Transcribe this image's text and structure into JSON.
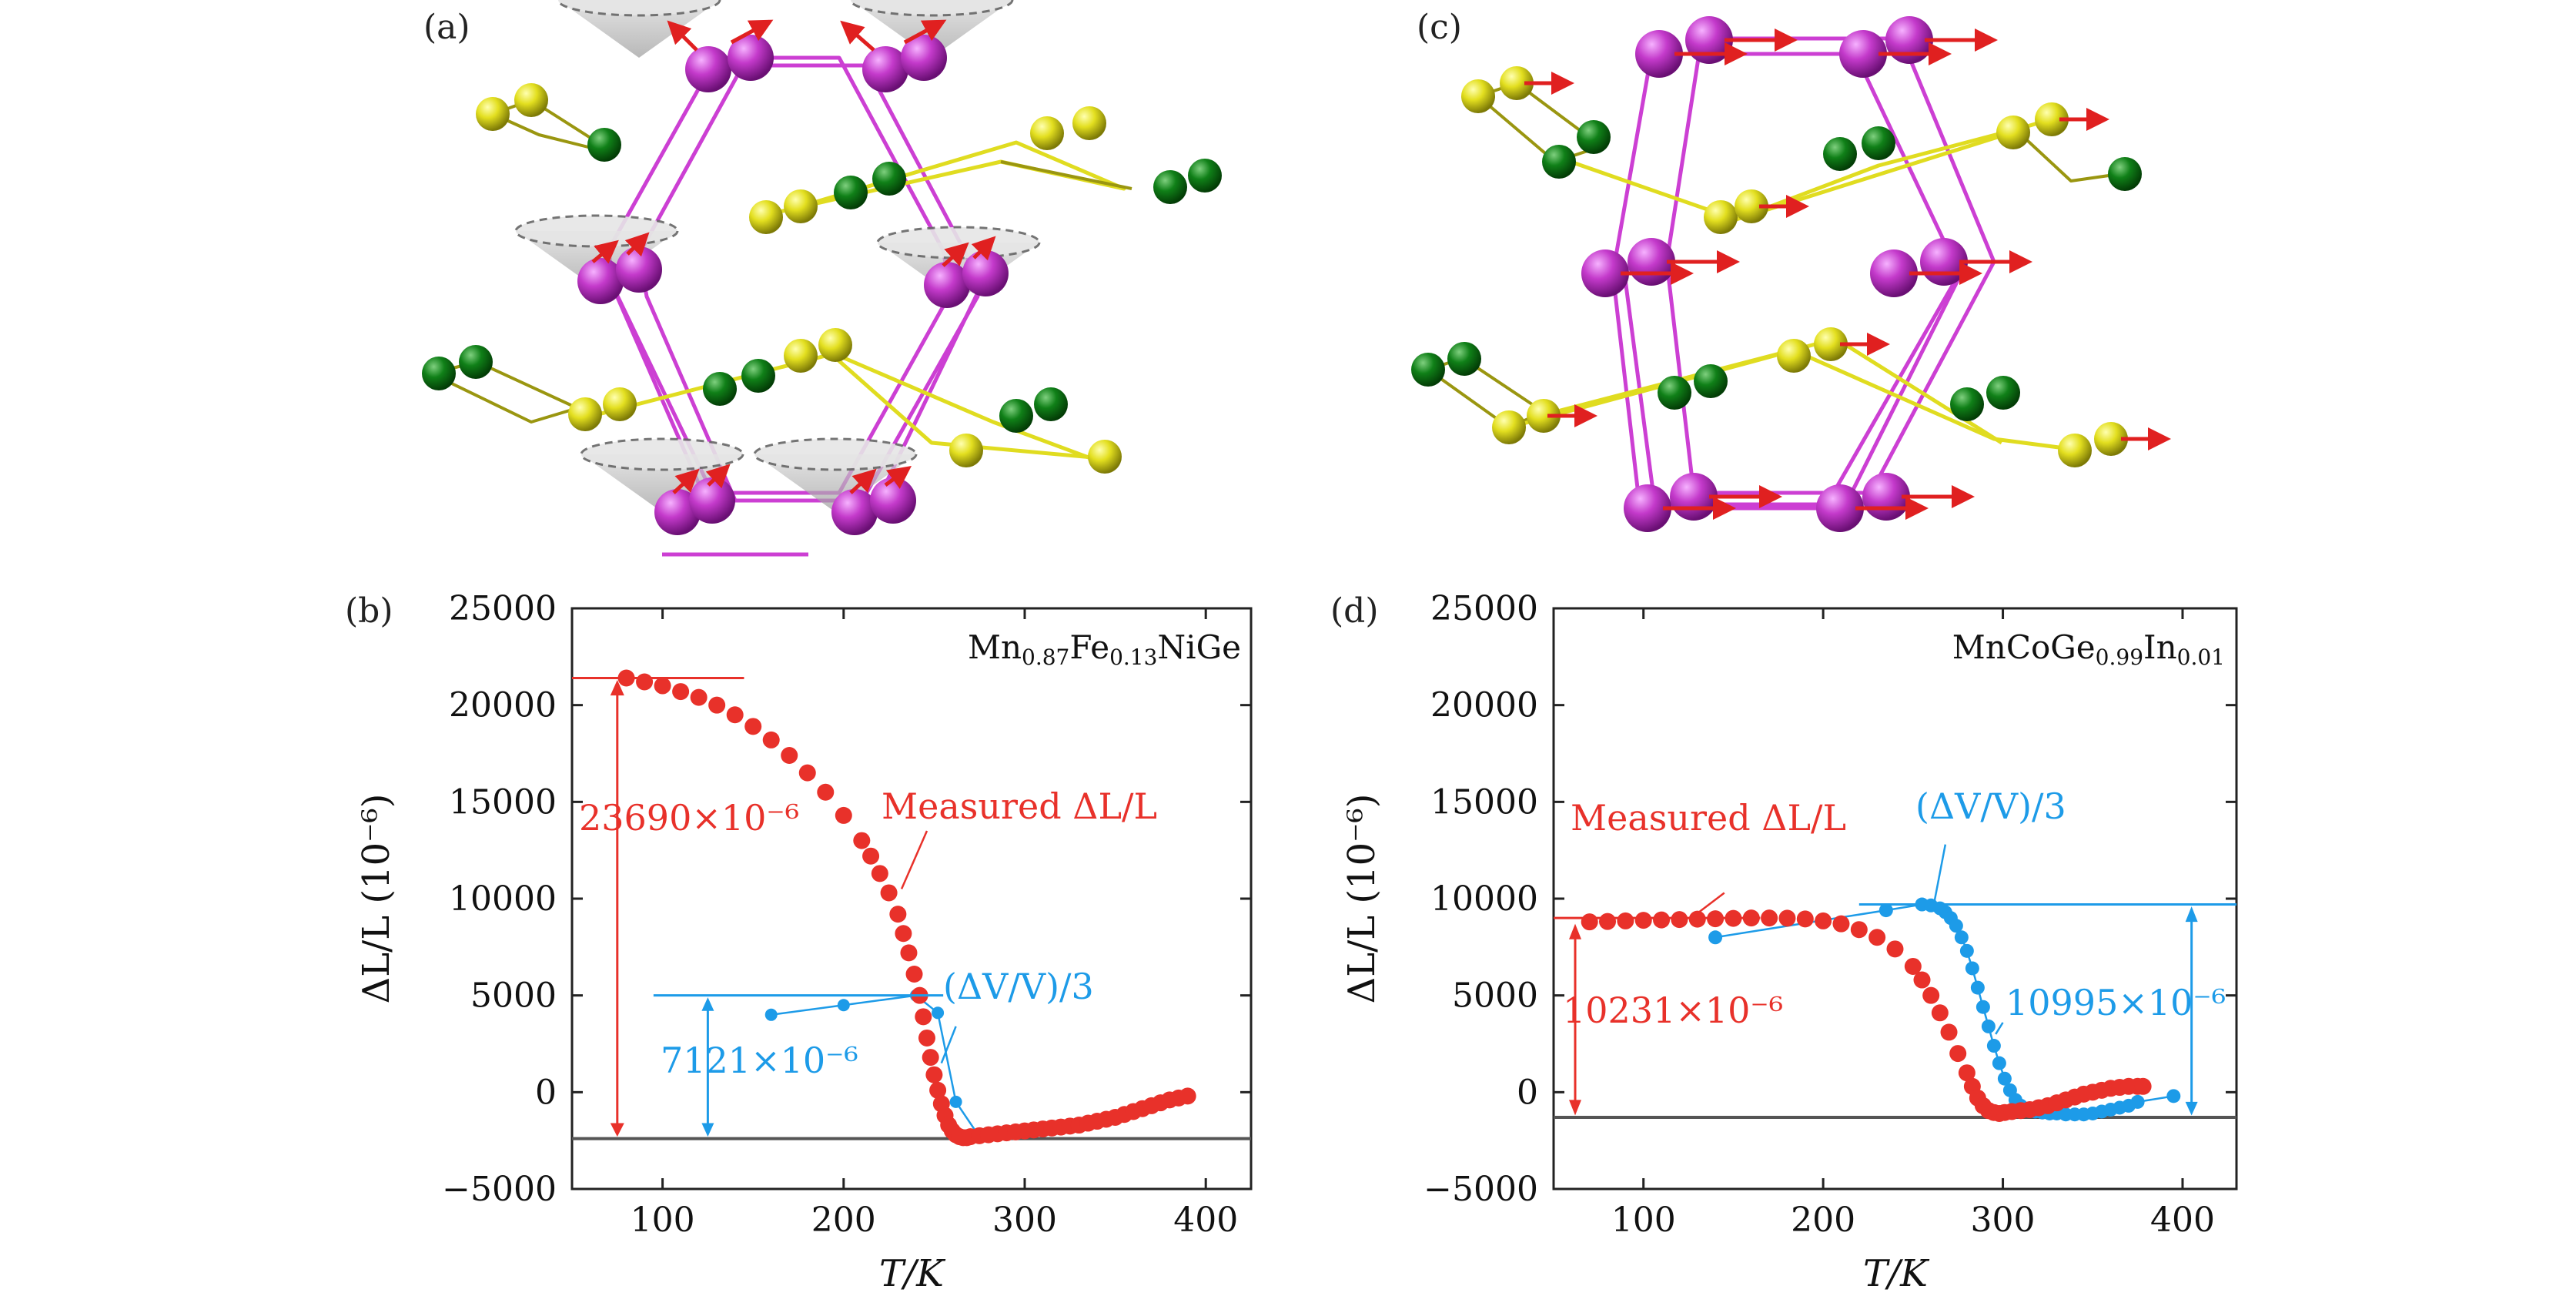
{
  "panels": {
    "a": {
      "label": "(a)"
    },
    "b": {
      "label": "(b)"
    },
    "c": {
      "label": "(c)"
    },
    "d": {
      "label": "(d)"
    }
  },
  "colors": {
    "red": "#e8312a",
    "blue": "#1d9be8",
    "magenta": "#cc3fd3",
    "yellow": "#e2de21",
    "green": "#0c6e12",
    "baseline": "#555555"
  },
  "chart_data": [
    {
      "panel": "(b)",
      "type": "scatter",
      "title": "Mn0.87Fe0.13NiGe",
      "title_parts": {
        "a": "Mn",
        "b": "0.87",
        "c": "Fe",
        "d": "0.13",
        "e": "NiGe"
      },
      "xlabel": "T/K",
      "ylabel": "ΔL/L (10⁻⁶)",
      "xlim": [
        50,
        425
      ],
      "ylim": [
        -5000,
        25000
      ],
      "xticks": [
        100,
        200,
        300,
        400
      ],
      "yticks": [
        -5000,
        0,
        5000,
        10000,
        15000,
        20000,
        25000
      ],
      "tick_labels_x": [
        "100",
        "200",
        "300",
        "400"
      ],
      "tick_labels_y": [
        "−5000",
        "0",
        "5000",
        "10000",
        "15000",
        "20000",
        "25000"
      ],
      "baseline_y": -2400,
      "series": [
        {
          "name": "Measured ΔL/L",
          "color": "#e8312a",
          "x": [
            80,
            90,
            100,
            110,
            120,
            130,
            140,
            150,
            160,
            170,
            180,
            190,
            200,
            210,
            215,
            220,
            225,
            230,
            233,
            236,
            239,
            242,
            244,
            246,
            248,
            250,
            252,
            254,
            256,
            258,
            260,
            262,
            264,
            266,
            268,
            270,
            275,
            280,
            285,
            290,
            295,
            300,
            305,
            310,
            315,
            320,
            325,
            330,
            335,
            340,
            345,
            350,
            355,
            360,
            365,
            370,
            375,
            380,
            385,
            390
          ],
          "y": [
            21400,
            21200,
            21000,
            20700,
            20400,
            20000,
            19500,
            18900,
            18200,
            17400,
            16500,
            15500,
            14300,
            13000,
            12200,
            11300,
            10300,
            9200,
            8200,
            7200,
            6100,
            5000,
            3900,
            2800,
            1800,
            900,
            100,
            -600,
            -1200,
            -1700,
            -2000,
            -2200,
            -2300,
            -2350,
            -2350,
            -2300,
            -2250,
            -2200,
            -2150,
            -2100,
            -2050,
            -2000,
            -1950,
            -1900,
            -1850,
            -1800,
            -1750,
            -1700,
            -1600,
            -1500,
            -1400,
            -1300,
            -1150,
            -1000,
            -850,
            -700,
            -550,
            -400,
            -300,
            -200
          ]
        },
        {
          "name": "(ΔV/V)/3",
          "color": "#1d9be8",
          "x": [
            160,
            200,
            240,
            252,
            262,
            275,
            300
          ],
          "y": [
            4000,
            4500,
            5000,
            4100,
            -500,
            -2300,
            -1900
          ]
        }
      ],
      "annotations": [
        {
          "text": "Measured ΔL/L",
          "color": "#e8312a"
        },
        {
          "text": "23690×10⁻⁶",
          "color": "#e8312a"
        },
        {
          "text": "(ΔV/V)/3",
          "color": "#1d9be8"
        },
        {
          "text": "7121×10⁻⁶",
          "color": "#1d9be8"
        }
      ]
    },
    {
      "panel": "(d)",
      "type": "scatter",
      "title": "MnCoGe0.99In0.01",
      "title_parts": {
        "a": "MnCoGe",
        "b": "0.99",
        "c": "In",
        "d": "0.01"
      },
      "xlabel": "T/K",
      "ylabel": "ΔL/L (10⁻⁶)",
      "xlim": [
        50,
        430
      ],
      "ylim": [
        -5000,
        25000
      ],
      "xticks": [
        100,
        200,
        300,
        400
      ],
      "yticks": [
        -5000,
        0,
        5000,
        10000,
        15000,
        20000,
        25000
      ],
      "tick_labels_x": [
        "100",
        "200",
        "300",
        "400"
      ],
      "tick_labels_y": [
        "−5000",
        "0",
        "5000",
        "10000",
        "15000",
        "20000",
        "25000"
      ],
      "baseline_y": -1300,
      "series": [
        {
          "name": "Measured ΔL/L",
          "color": "#e8312a",
          "x": [
            70,
            80,
            90,
            100,
            110,
            120,
            130,
            140,
            150,
            160,
            170,
            180,
            190,
            200,
            210,
            220,
            230,
            240,
            250,
            255,
            260,
            265,
            270,
            275,
            280,
            283,
            286,
            289,
            292,
            295,
            298,
            301,
            305,
            310,
            315,
            320,
            325,
            330,
            335,
            340,
            345,
            350,
            355,
            360,
            365,
            370,
            375,
            378
          ],
          "y": [
            8800,
            8820,
            8850,
            8880,
            8900,
            8920,
            8940,
            8960,
            8980,
            9000,
            9000,
            8990,
            8950,
            8850,
            8700,
            8400,
            8000,
            7400,
            6500,
            5800,
            5000,
            4100,
            3100,
            2000,
            1000,
            300,
            -300,
            -700,
            -950,
            -1050,
            -1100,
            -1050,
            -1000,
            -950,
            -900,
            -800,
            -700,
            -550,
            -400,
            -250,
            -100,
            0,
            100,
            200,
            250,
            300,
            300,
            300
          ],
          "mark_every": 1
        },
        {
          "name": "(ΔV/V)/3",
          "color": "#1d9be8",
          "x": [
            140,
            235,
            255,
            260,
            265,
            268,
            271,
            274,
            277,
            280,
            283,
            286,
            289,
            292,
            295,
            298,
            301,
            304,
            307,
            310,
            314,
            318,
            322,
            326,
            330,
            335,
            340,
            345,
            350,
            355,
            360,
            365,
            370,
            375,
            395
          ],
          "y": [
            8000,
            9400,
            9700,
            9650,
            9500,
            9300,
            9000,
            8600,
            8000,
            7300,
            6400,
            5400,
            4400,
            3400,
            2400,
            1500,
            700,
            100,
            -400,
            -700,
            -900,
            -1000,
            -1050,
            -1100,
            -1100,
            -1150,
            -1150,
            -1150,
            -1100,
            -1000,
            -900,
            -800,
            -700,
            -500,
            -200
          ]
        }
      ],
      "annotations": [
        {
          "text": "Measured ΔL/L",
          "color": "#e8312a"
        },
        {
          "text": "10231×10⁻⁶",
          "color": "#e8312a"
        },
        {
          "text": "(ΔV/V)/3",
          "color": "#1d9be8"
        },
        {
          "text": "10995×10⁻⁶",
          "color": "#1d9be8"
        }
      ]
    }
  ]
}
